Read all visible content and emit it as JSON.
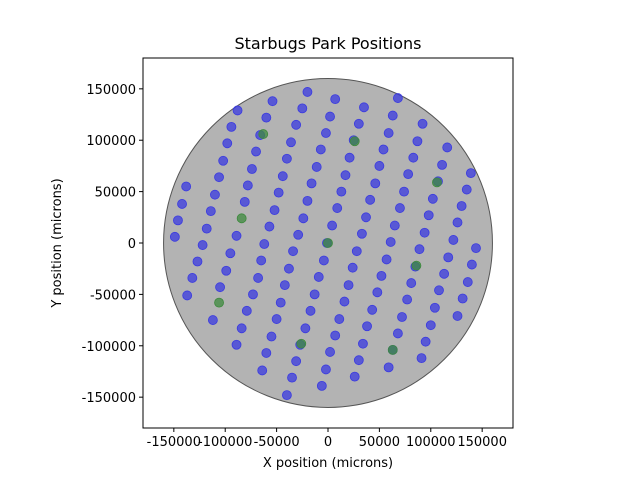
{
  "chart_data": {
    "type": "scatter",
    "title": "Starbugs Park Positions",
    "xlabel": "X position (microns)",
    "ylabel": "Y position (microns)",
    "xlim": [
      -180000,
      180000
    ],
    "ylim": [
      -180000,
      180000
    ],
    "xticks": [
      -150000,
      -100000,
      -50000,
      0,
      50000,
      100000,
      150000
    ],
    "yticks": [
      -150000,
      -100000,
      -50000,
      0,
      50000,
      100000,
      150000
    ],
    "xtick_labels": [
      "-150000",
      "-100000",
      "-50000",
      "0",
      "50000",
      "100000",
      "150000"
    ],
    "ytick_labels": [
      "-150000",
      "-100000",
      "-50000",
      "0",
      "50000",
      "100000",
      "150000"
    ],
    "grid": false,
    "field": {
      "center": [
        0,
        0
      ],
      "radius": 160000,
      "fill_color": "#808080",
      "edge_color": "#555555"
    },
    "series": [
      {
        "color": "#3a3ae0",
        "points": [
          [
            -149000,
            6000
          ],
          [
            -146000,
            22000
          ],
          [
            -142000,
            38000
          ],
          [
            -138000,
            55000
          ],
          [
            -137000,
            -51000
          ],
          [
            -132000,
            -34000
          ],
          [
            -127000,
            -18000
          ],
          [
            -122000,
            -2000
          ],
          [
            -118000,
            14000
          ],
          [
            -114000,
            31000
          ],
          [
            -110000,
            47000
          ],
          [
            -106000,
            64000
          ],
          [
            -102000,
            80000
          ],
          [
            -98000,
            97000
          ],
          [
            -94000,
            113000
          ],
          [
            -88000,
            129000
          ],
          [
            -112000,
            -75000
          ],
          [
            -105000,
            -43000
          ],
          [
            -99000,
            -27000
          ],
          [
            -95000,
            -10000
          ],
          [
            -89000,
            7000
          ],
          [
            -81000,
            40000
          ],
          [
            -78000,
            56000
          ],
          [
            -74000,
            72000
          ],
          [
            -70000,
            89000
          ],
          [
            -66000,
            105000
          ],
          [
            -60000,
            122000
          ],
          [
            -54000,
            138000
          ],
          [
            -89000,
            -99000
          ],
          [
            -84000,
            -83000
          ],
          [
            -79000,
            -66000
          ],
          [
            -73000,
            -50000
          ],
          [
            -68000,
            -34000
          ],
          [
            -65000,
            -17000
          ],
          [
            -62000,
            -1000
          ],
          [
            -57000,
            16000
          ],
          [
            -52000,
            32000
          ],
          [
            -48000,
            49000
          ],
          [
            -44000,
            65000
          ],
          [
            -40000,
            82000
          ],
          [
            -36000,
            98000
          ],
          [
            -31000,
            115000
          ],
          [
            -25000,
            131000
          ],
          [
            -20000,
            147000
          ],
          [
            -64000,
            -124000
          ],
          [
            -60000,
            -107000
          ],
          [
            -55000,
            -91000
          ],
          [
            -50000,
            -74000
          ],
          [
            -46000,
            -58000
          ],
          [
            -42000,
            -41000
          ],
          [
            -38000,
            -25000
          ],
          [
            -34000,
            -8000
          ],
          [
            -29000,
            8000
          ],
          [
            -24000,
            24000
          ],
          [
            -20000,
            41000
          ],
          [
            -16000,
            58000
          ],
          [
            -11000,
            74000
          ],
          [
            -7000,
            91000
          ],
          [
            -2000,
            107000
          ],
          [
            2000,
            123000
          ],
          [
            7000,
            140000
          ],
          [
            -40000,
            -148000
          ],
          [
            -35000,
            -131000
          ],
          [
            -31000,
            -115000
          ],
          [
            -27000,
            -99000
          ],
          [
            -22000,
            -83000
          ],
          [
            -17000,
            -66000
          ],
          [
            -13000,
            -50000
          ],
          [
            -9000,
            -33000
          ],
          [
            -4000,
            -17000
          ],
          [
            -1000,
            0
          ],
          [
            4000,
            17000
          ],
          [
            9000,
            34000
          ],
          [
            13000,
            50000
          ],
          [
            17000,
            66000
          ],
          [
            21000,
            83000
          ],
          [
            25000,
            100000
          ],
          [
            30000,
            116000
          ],
          [
            35000,
            132000
          ],
          [
            -6000,
            -139000
          ],
          [
            -2000,
            -123000
          ],
          [
            2000,
            -106000
          ],
          [
            7000,
            -90000
          ],
          [
            11000,
            -74000
          ],
          [
            16000,
            -57000
          ],
          [
            20000,
            -41000
          ],
          [
            24000,
            -24000
          ],
          [
            28000,
            -8000
          ],
          [
            33000,
            9000
          ],
          [
            37000,
            25000
          ],
          [
            41000,
            42000
          ],
          [
            46000,
            58000
          ],
          [
            50000,
            75000
          ],
          [
            54000,
            91000
          ],
          [
            59000,
            107000
          ],
          [
            63000,
            124000
          ],
          [
            68000,
            141000
          ],
          [
            26000,
            -130000
          ],
          [
            30000,
            -114000
          ],
          [
            34000,
            -98000
          ],
          [
            38000,
            -81000
          ],
          [
            43000,
            -65000
          ],
          [
            48000,
            -48000
          ],
          [
            52000,
            -32000
          ],
          [
            57000,
            -16000
          ],
          [
            61000,
            1000
          ],
          [
            65000,
            17000
          ],
          [
            70000,
            34000
          ],
          [
            74000,
            50000
          ],
          [
            78000,
            67000
          ],
          [
            83000,
            83000
          ],
          [
            87000,
            99000
          ],
          [
            92000,
            116000
          ],
          [
            59000,
            -121000
          ],
          [
            63000,
            -104000
          ],
          [
            68000,
            -88000
          ],
          [
            72000,
            -72000
          ],
          [
            77000,
            -55000
          ],
          [
            81000,
            -39000
          ],
          [
            85000,
            -23000
          ],
          [
            89000,
            -6000
          ],
          [
            94000,
            10000
          ],
          [
            98000,
            27000
          ],
          [
            102000,
            43000
          ],
          [
            107000,
            60000
          ],
          [
            111000,
            76000
          ],
          [
            116000,
            93000
          ],
          [
            91000,
            -112000
          ],
          [
            95000,
            -96000
          ],
          [
            100000,
            -80000
          ],
          [
            104000,
            -63000
          ],
          [
            108000,
            -46000
          ],
          [
            113000,
            -30000
          ],
          [
            117000,
            -14000
          ],
          [
            122000,
            3000
          ],
          [
            126000,
            20000
          ],
          [
            130000,
            36000
          ],
          [
            135000,
            52000
          ],
          [
            139000,
            68000
          ],
          [
            126000,
            -71000
          ],
          [
            131000,
            -54000
          ],
          [
            136000,
            -38000
          ],
          [
            140000,
            -21000
          ],
          [
            144000,
            -5000
          ]
        ]
      },
      {
        "color": "#3d8a3d",
        "points": [
          [
            -63000,
            106000
          ],
          [
            26000,
            99000
          ],
          [
            -84000,
            24000
          ],
          [
            106000,
            59000
          ],
          [
            0,
            0
          ],
          [
            86000,
            -22000
          ],
          [
            -106000,
            -58000
          ],
          [
            -26000,
            -98000
          ],
          [
            63000,
            -104000
          ]
        ]
      }
    ]
  }
}
